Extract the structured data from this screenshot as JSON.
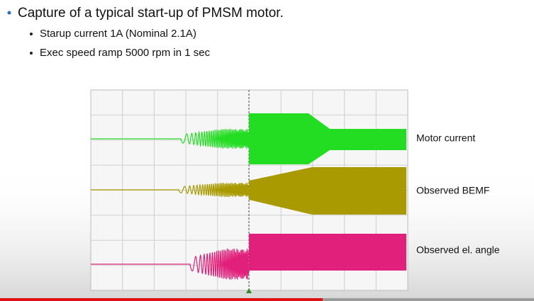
{
  "slide": {
    "title": "Capture of a typical start-up of PMSM motor.",
    "bullets": [
      "Starup current 1A (Nominal 2.1A)",
      "Exec speed ramp 5000 rpm in 1 sec"
    ]
  },
  "scope": {
    "trace_labels": [
      "Motor current",
      "Observed BEMF",
      "Observed el. angle"
    ]
  }
}
